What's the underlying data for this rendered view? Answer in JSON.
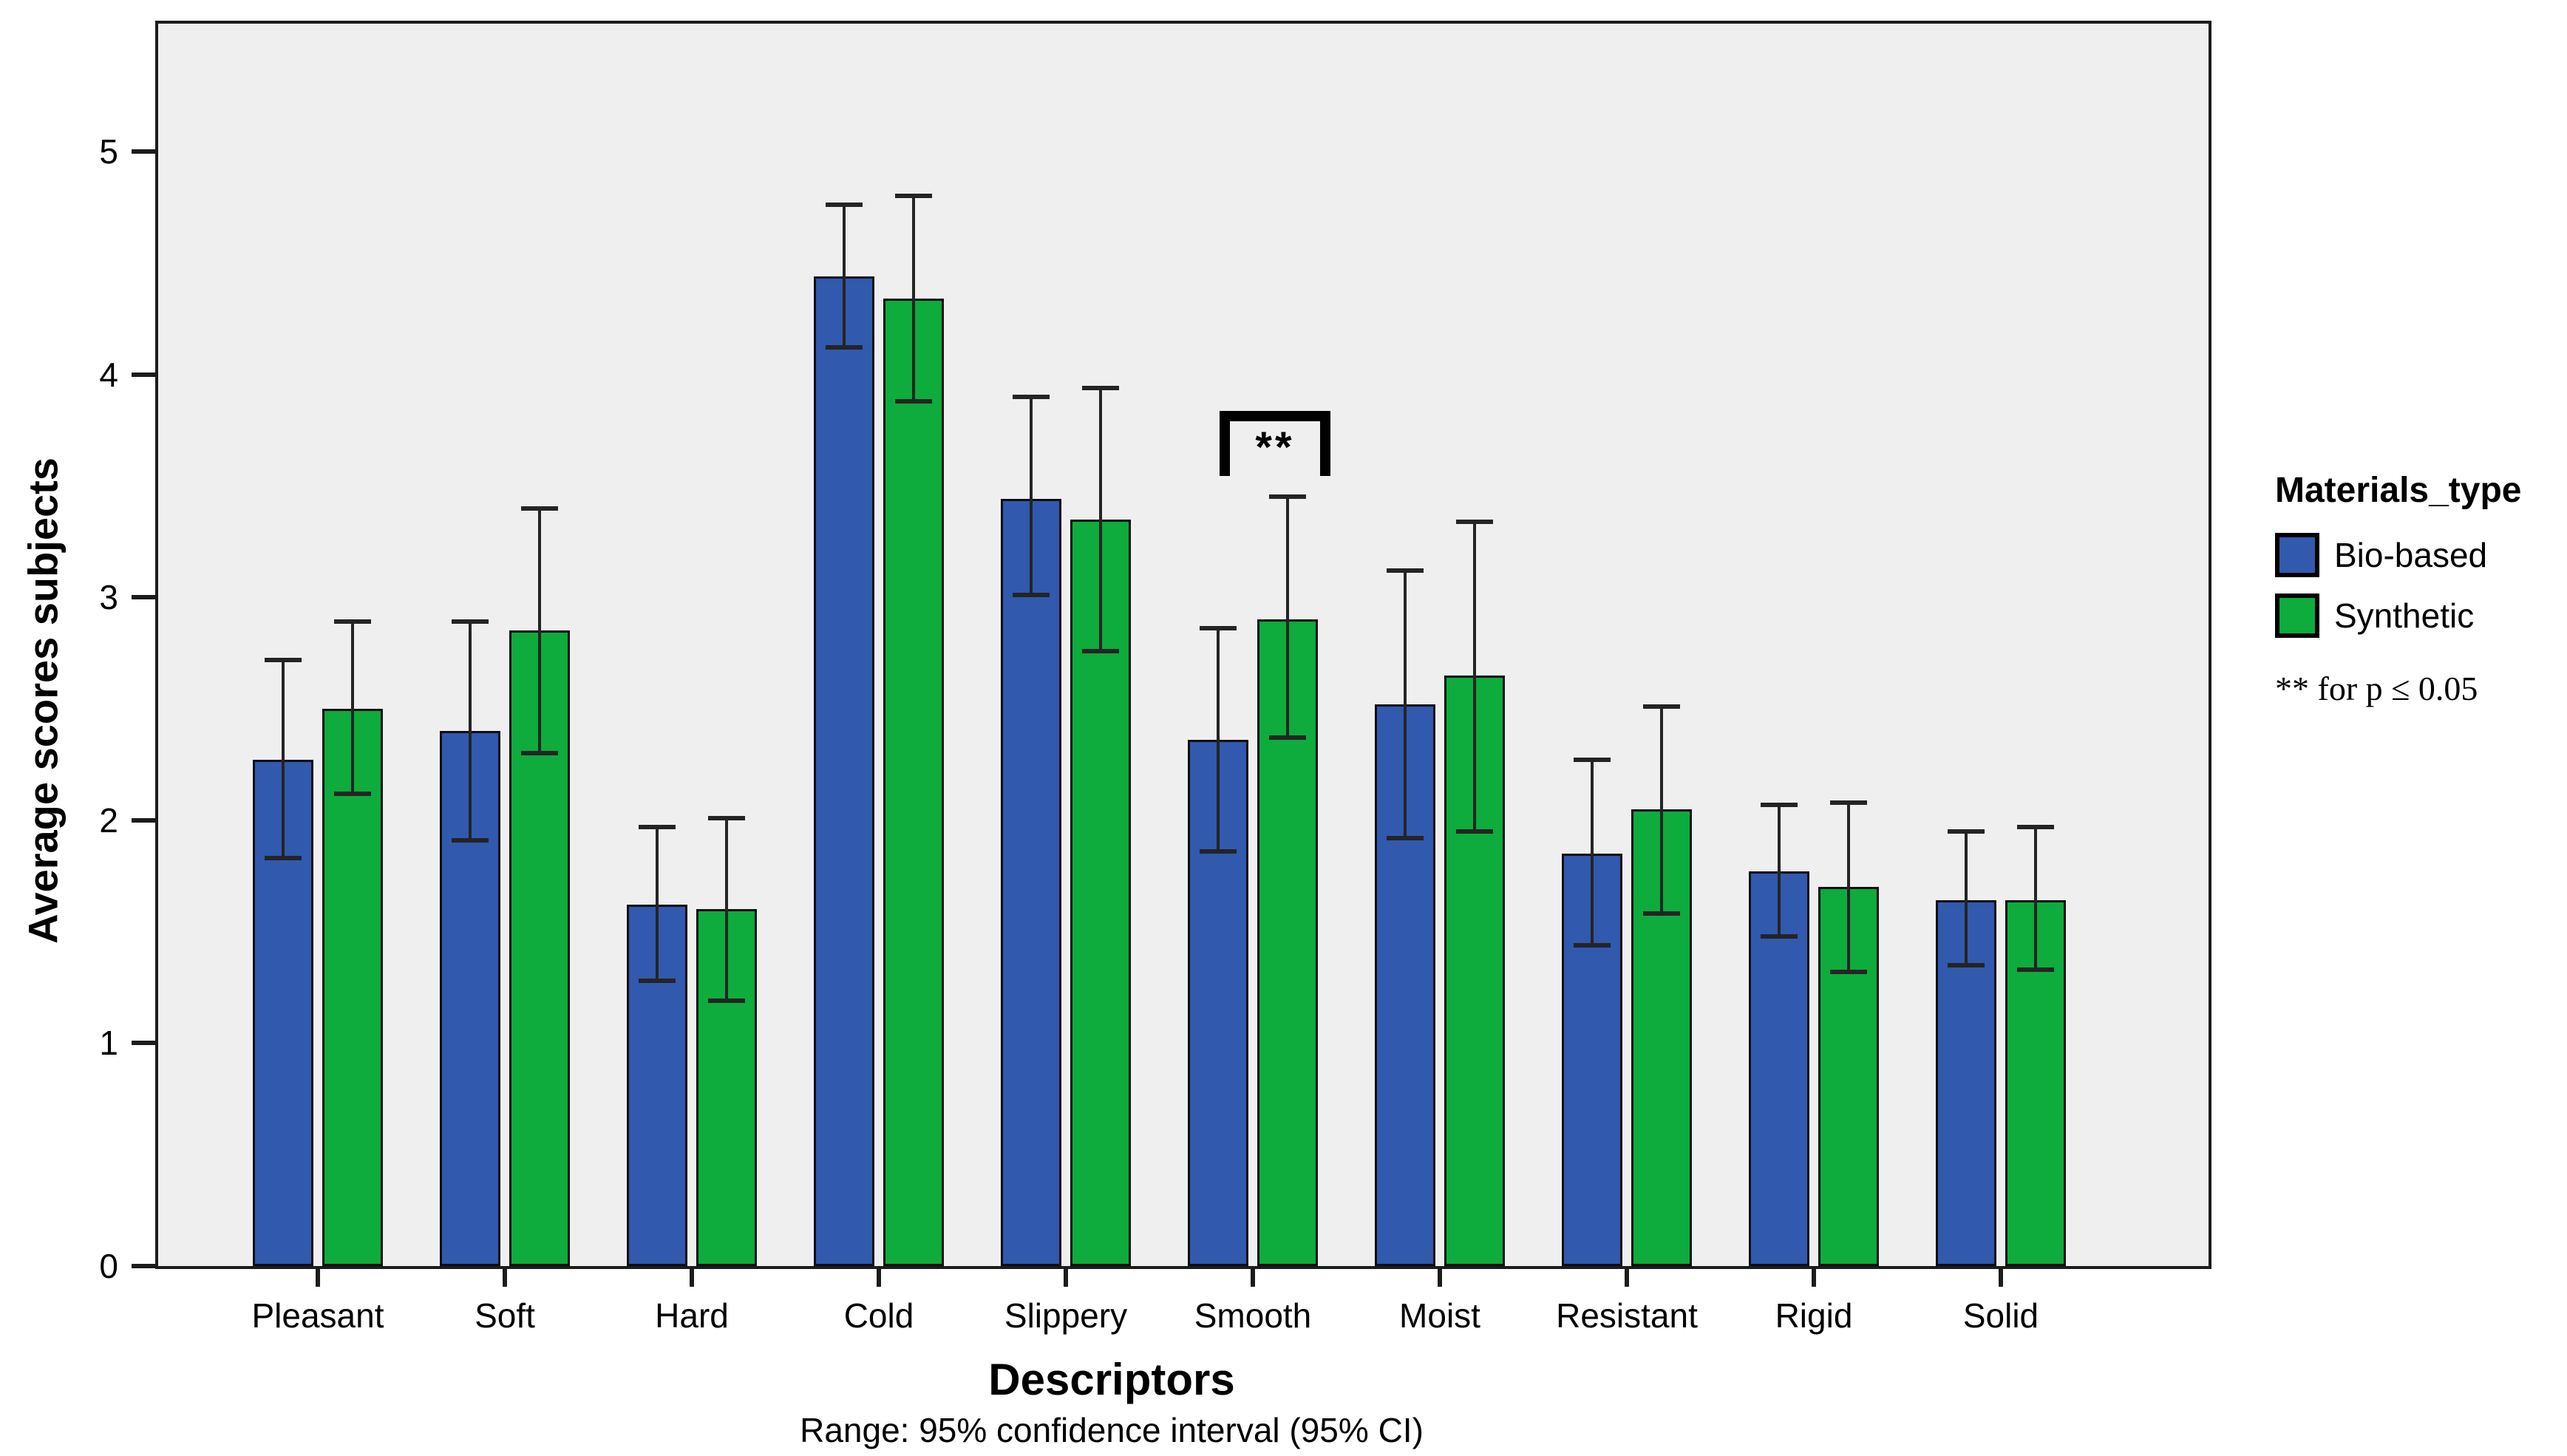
{
  "figure": {
    "background": "#ffffff",
    "plot_background": "#efefef",
    "frame_color": "#1c1c1c",
    "text_color": "#000000"
  },
  "chart_data": {
    "type": "bar",
    "title": "",
    "xlabel": "Descriptors",
    "ylabel": "Average scores subjects",
    "caption": "Range: 95% confidence interval (95% CI)",
    "categories": [
      "Pleasant",
      "Soft",
      "Hard",
      "Cold",
      "Slippery",
      "Smooth",
      "Moist",
      "Resistant",
      "Rigid",
      "Solid"
    ],
    "series": [
      {
        "name": "Bio-based",
        "color": "#3159ae",
        "values": [
          2.27,
          2.4,
          1.62,
          4.44,
          3.44,
          2.36,
          2.52,
          1.85,
          1.77,
          1.64
        ],
        "ci_low": [
          1.83,
          1.91,
          1.28,
          4.12,
          3.01,
          1.86,
          1.92,
          1.44,
          1.48,
          1.35
        ],
        "ci_high": [
          2.72,
          2.89,
          1.97,
          4.76,
          3.9,
          2.86,
          3.12,
          2.27,
          2.07,
          1.95
        ]
      },
      {
        "name": "Synthetic",
        "color": "#0dac3c",
        "values": [
          2.5,
          2.85,
          1.6,
          4.34,
          3.35,
          2.9,
          2.65,
          2.05,
          1.7,
          1.64
        ],
        "ci_low": [
          2.12,
          2.3,
          1.19,
          3.88,
          2.76,
          2.37,
          1.95,
          1.58,
          1.32,
          1.33
        ],
        "ci_high": [
          2.89,
          3.4,
          2.01,
          4.8,
          3.94,
          3.45,
          3.34,
          2.51,
          2.08,
          1.97
        ]
      }
    ],
    "ylim": [
      0,
      5
    ],
    "yticks": [
      0,
      1,
      2,
      3,
      4,
      5
    ],
    "grid": false,
    "error_bars": "95% confidence interval",
    "legend_position": "right",
    "annotation": {
      "text": "**",
      "category": "Smooth",
      "meaning": "significant difference"
    },
    "legend": {
      "title": "Materials_type",
      "entries": [
        {
          "label": "Bio-based",
          "color": "#3159ae"
        },
        {
          "label": "Synthetic",
          "color": "#0dac3c"
        }
      ],
      "note": "** for p ≤ 0.05"
    }
  }
}
